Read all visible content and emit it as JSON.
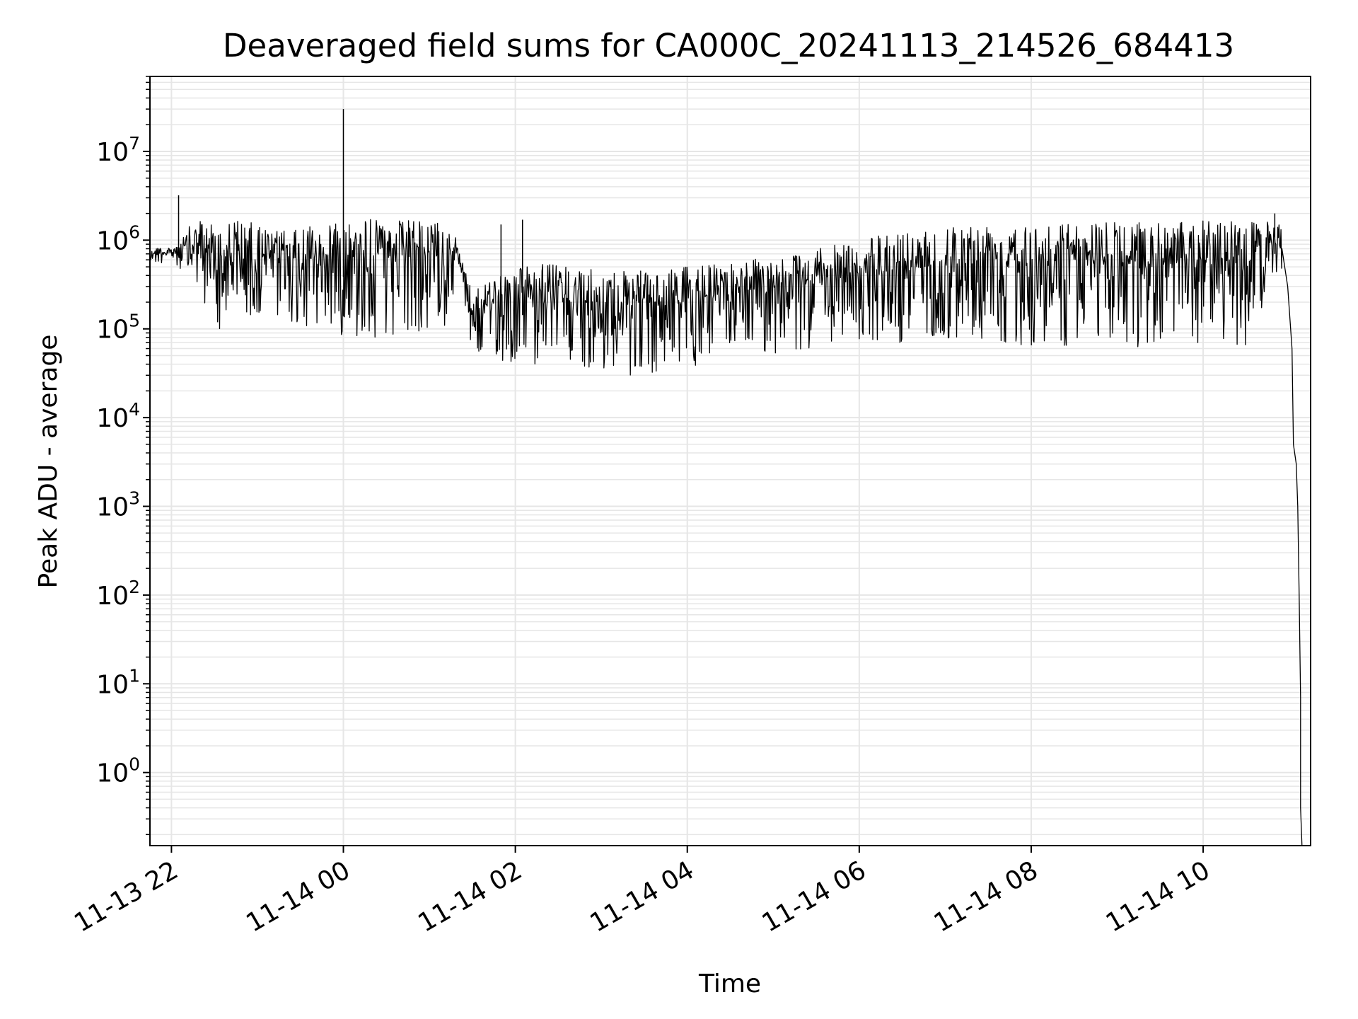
{
  "chart_data": {
    "type": "line",
    "title": "Deaveraged field sums for CA000C_20241113_214526_684413",
    "xlabel": "Time",
    "ylabel": "Peak ADU - average",
    "yscale": "log",
    "ylim": [
      0.15,
      70000000
    ],
    "xlim": [
      "2024-11-13 21:45",
      "2024-11-14 11:15"
    ],
    "grid": true,
    "grid_color": "#e6e6e6",
    "line_color": "#000000",
    "x_ticks": [
      {
        "value": "2024-11-13 22:00",
        "label": "11-13 22"
      },
      {
        "value": "2024-11-14 00:00",
        "label": "11-14 00"
      },
      {
        "value": "2024-11-14 02:00",
        "label": "11-14 02"
      },
      {
        "value": "2024-11-14 04:00",
        "label": "11-14 04"
      },
      {
        "value": "2024-11-14 06:00",
        "label": "11-14 06"
      },
      {
        "value": "2024-11-14 08:00",
        "label": "11-14 08"
      },
      {
        "value": "2024-11-14 10:00",
        "label": "11-14 10"
      }
    ],
    "y_ticks": [
      {
        "value": 1,
        "base": "10",
        "exp": "0"
      },
      {
        "value": 10,
        "base": "10",
        "exp": "1"
      },
      {
        "value": 100,
        "base": "10",
        "exp": "2"
      },
      {
        "value": 1000,
        "base": "10",
        "exp": "3"
      },
      {
        "value": 10000,
        "base": "10",
        "exp": "4"
      },
      {
        "value": 100000,
        "base": "10",
        "exp": "5"
      },
      {
        "value": 1000000,
        "base": "10",
        "exp": "6"
      },
      {
        "value": 10000000,
        "base": "10",
        "exp": "7"
      }
    ],
    "series": [
      {
        "envelope": [
          {
            "t": "2024-11-13 21:45",
            "high": 900000,
            "low": 500000
          },
          {
            "t": "2024-11-13 22:00",
            "high": 800000,
            "low": 550000
          },
          {
            "t": "2024-11-13 22:15",
            "high": 1600000,
            "low": 300000
          },
          {
            "t": "2024-11-13 22:30",
            "high": 1700000,
            "low": 100000
          },
          {
            "t": "2024-11-13 22:50",
            "high": 1700000,
            "low": 90000
          },
          {
            "t": "2024-11-13 23:10",
            "high": 1300000,
            "low": 150000
          },
          {
            "t": "2024-11-13 23:30",
            "high": 1300000,
            "low": 100000
          },
          {
            "t": "2024-11-13 23:50",
            "high": 1700000,
            "low": 90000
          },
          {
            "t": "2024-11-14 00:10",
            "high": 1800000,
            "low": 80000
          },
          {
            "t": "2024-11-14 00:30",
            "high": 1700000,
            "low": 80000
          },
          {
            "t": "2024-11-14 00:50",
            "high": 1700000,
            "low": 80000
          },
          {
            "t": "2024-11-14 01:10",
            "high": 1600000,
            "low": 90000
          },
          {
            "t": "2024-11-14 01:20",
            "high": 1000000,
            "low": 400000
          },
          {
            "t": "2024-11-14 01:30",
            "high": 250000,
            "low": 50000
          },
          {
            "t": "2024-11-14 01:45",
            "high": 400000,
            "low": 45000
          },
          {
            "t": "2024-11-14 02:00",
            "high": 500000,
            "low": 40000
          },
          {
            "t": "2024-11-14 02:20",
            "high": 550000,
            "low": 40000
          },
          {
            "t": "2024-11-14 02:40",
            "high": 500000,
            "low": 35000
          },
          {
            "t": "2024-11-14 03:00",
            "high": 450000,
            "low": 32000
          },
          {
            "t": "2024-11-14 03:20",
            "high": 450000,
            "low": 30000
          },
          {
            "t": "2024-11-14 03:40",
            "high": 450000,
            "low": 32000
          },
          {
            "t": "2024-11-14 04:00",
            "high": 500000,
            "low": 35000
          },
          {
            "t": "2024-11-14 04:20",
            "high": 550000,
            "low": 40000
          },
          {
            "t": "2024-11-14 04:40",
            "high": 600000,
            "low": 45000
          },
          {
            "t": "2024-11-14 05:00",
            "high": 650000,
            "low": 50000
          },
          {
            "t": "2024-11-14 05:30",
            "high": 800000,
            "low": 60000
          },
          {
            "t": "2024-11-14 06:00",
            "high": 1000000,
            "low": 70000
          },
          {
            "t": "2024-11-14 06:30",
            "high": 1300000,
            "low": 70000
          },
          {
            "t": "2024-11-14 07:00",
            "high": 1500000,
            "low": 70000
          },
          {
            "t": "2024-11-14 07:30",
            "high": 1600000,
            "low": 70000
          },
          {
            "t": "2024-11-14 08:00",
            "high": 1600000,
            "low": 65000
          },
          {
            "t": "2024-11-14 08:30",
            "high": 1600000,
            "low": 65000
          },
          {
            "t": "2024-11-14 09:00",
            "high": 1600000,
            "low": 60000
          },
          {
            "t": "2024-11-14 09:30",
            "high": 1600000,
            "low": 60000
          },
          {
            "t": "2024-11-14 10:00",
            "high": 1700000,
            "low": 60000
          },
          {
            "t": "2024-11-14 10:30",
            "high": 1700000,
            "low": 60000
          },
          {
            "t": "2024-11-14 10:45",
            "high": 1600000,
            "low": 250000
          },
          {
            "t": "2024-11-14 10:55",
            "high": 1500000,
            "low": 400000
          }
        ],
        "spikes": [
          {
            "t": "2024-11-13 22:05",
            "value": 3200000
          },
          {
            "t": "2024-11-14 00:00",
            "value": 30000000
          },
          {
            "t": "2024-11-14 01:50",
            "value": 1500000
          },
          {
            "t": "2024-11-14 02:05",
            "value": 1700000
          },
          {
            "t": "2024-11-14 10:50",
            "value": 2000000
          }
        ],
        "tail": [
          {
            "t": "2024-11-14 10:55",
            "value": 800000
          },
          {
            "t": "2024-11-14 10:59",
            "value": 300000
          },
          {
            "t": "2024-11-14 11:02",
            "value": 60000
          },
          {
            "t": "2024-11-14 11:03",
            "value": 5000
          },
          {
            "t": "2024-11-14 11:05",
            "value": 3000
          },
          {
            "t": "2024-11-14 11:06",
            "value": 1000
          },
          {
            "t": "2024-11-14 11:07",
            "value": 100
          },
          {
            "t": "2024-11-14 11:08",
            "value": 7
          },
          {
            "t": "2024-11-14 11:08",
            "value": 0.4
          },
          {
            "t": "2024-11-14 11:09",
            "value": 0.15
          }
        ]
      }
    ]
  }
}
